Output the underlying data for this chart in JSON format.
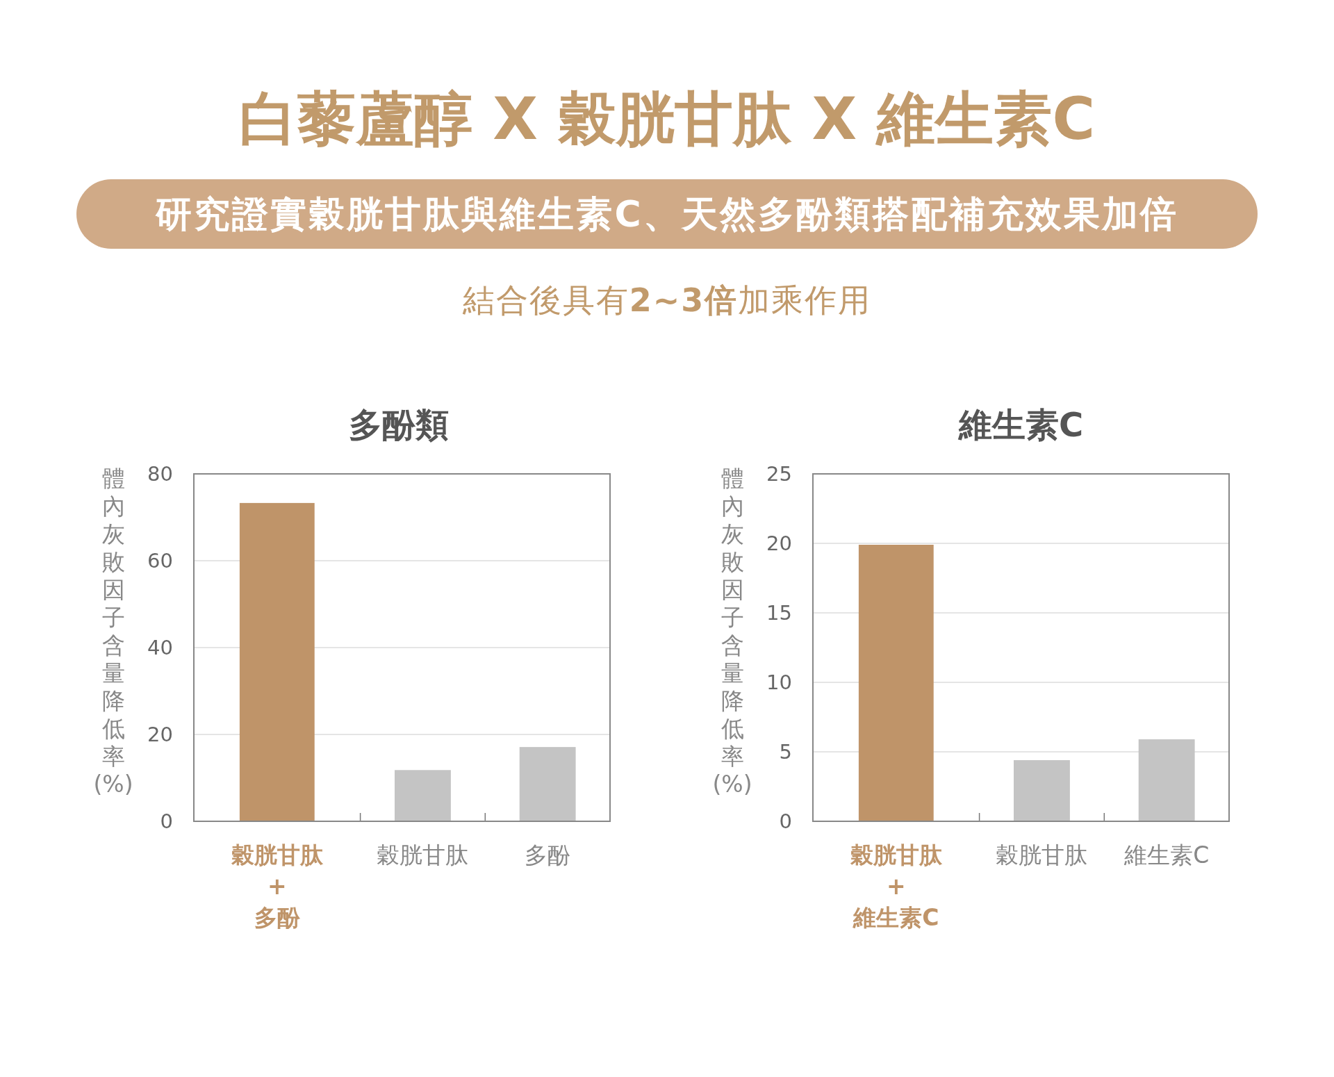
{
  "chart_data": [
    {
      "type": "other",
      "title": "白藜蘆醇 X 穀胱甘肽 X 維生素C",
      "subtitle": "研究證實穀胱甘肽與維生素C、天然多酚類搭配補充效果加倍",
      "annotations": [
        "結合後具有**2~3倍**加乘作用"
      ]
    },
    {
      "type": "bar",
      "title": "多酚類",
      "ylabel": "體內灰敗因子含量降低率(%)",
      "categories": [
        "穀胱甘肽\n+\n多酚",
        "穀胱甘肽",
        "多酚"
      ],
      "values": [
        73.3,
        11.8,
        17.1
      ],
      "colors": [
        "#bf9469",
        "#c4c4c4",
        "#c4c4c4"
      ],
      "ylim": [
        0,
        80
      ],
      "yticks": [
        0,
        20,
        40,
        60,
        80
      ],
      "grid": "y"
    },
    {
      "type": "bar",
      "title": "維生素C",
      "ylabel": "體內灰敗因子含量降低率(%)",
      "categories": [
        "穀胱甘肽\n+\n維生素C",
        "穀胱甘肽",
        "維生素C"
      ],
      "values": [
        19.9,
        4.4,
        5.9
      ],
      "colors": [
        "#bf9469",
        "#c4c4c4",
        "#c4c4c4"
      ],
      "ylim": [
        0,
        25
      ],
      "yticks": [
        0,
        5,
        10,
        15,
        20,
        25
      ],
      "grid": "y"
    }
  ]
}
